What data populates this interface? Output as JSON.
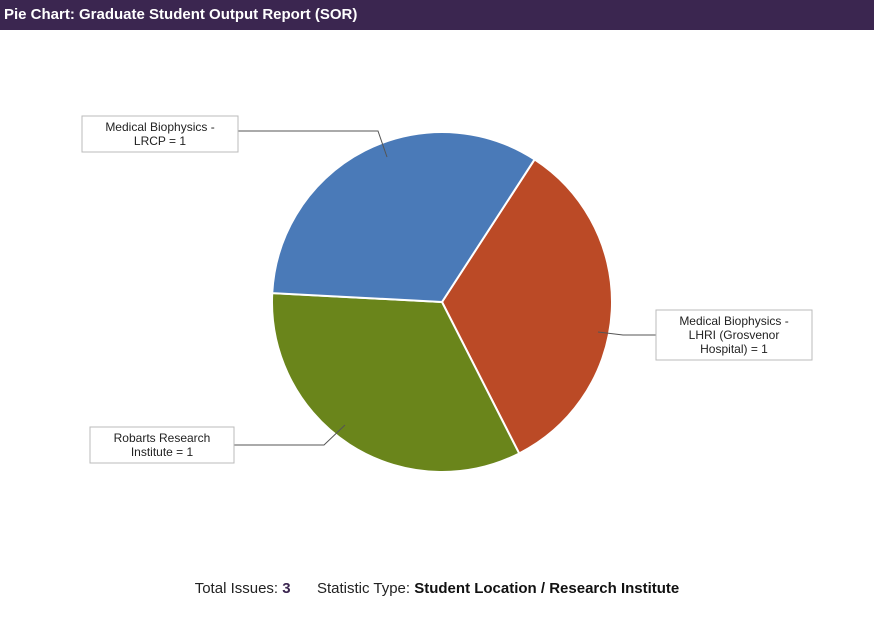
{
  "header": {
    "title": "Pie Chart: Graduate Student Output Report (SOR)"
  },
  "chart_data": {
    "type": "pie",
    "slices": [
      {
        "label_lines": [
          "Medical Biophysics -",
          "LRCP = 1"
        ],
        "value": 1,
        "color": "#bb4a26"
      },
      {
        "label_lines": [
          "Medical Biophysics -",
          "LHRI (Grosvenor",
          "Hospital) = 1"
        ],
        "value": 1,
        "color": "#6a851b"
      },
      {
        "label_lines": [
          "Robarts Research",
          "Institute = 1"
        ],
        "value": 1,
        "color": "#4a7ab8"
      }
    ]
  },
  "footer": {
    "total_label": "Total Issues:",
    "total_value": "3",
    "stat_label": "Statistic Type:",
    "stat_value": "Student Location / Research Institute"
  }
}
